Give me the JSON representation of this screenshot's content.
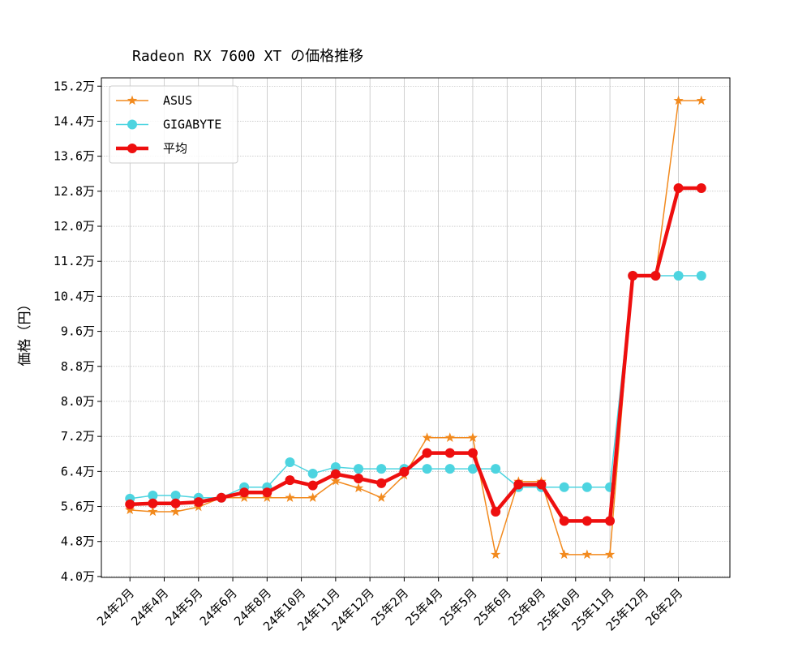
{
  "chart_data": {
    "type": "line",
    "title": "Radeon RX 7600 XT の価格推移",
    "y_label": "価格（円）",
    "x": [
      0,
      1,
      2,
      3,
      4,
      5,
      6,
      7,
      8,
      9,
      10,
      11,
      12,
      13,
      14,
      15,
      16,
      17,
      18,
      19,
      20,
      21,
      22,
      23,
      24,
      25
    ],
    "xlim": [
      -1.25,
      26.25
    ],
    "xticks": [
      {
        "value": 0,
        "label": "24年2月"
      },
      {
        "value": 1.5,
        "label": "24年4月"
      },
      {
        "value": 3,
        "label": "24年5月"
      },
      {
        "value": 4.5,
        "label": "24年6月"
      },
      {
        "value": 6,
        "label": "24年8月"
      },
      {
        "value": 7.5,
        "label": "24年10月"
      },
      {
        "value": 9,
        "label": "24年11月"
      },
      {
        "value": 10.5,
        "label": "24年12月"
      },
      {
        "value": 12,
        "label": "25年2月"
      },
      {
        "value": 13.5,
        "label": "25年4月"
      },
      {
        "value": 15,
        "label": "25年5月"
      },
      {
        "value": 16.5,
        "label": "25年6月"
      },
      {
        "value": 18,
        "label": "25年8月"
      },
      {
        "value": 19.5,
        "label": "25年10月"
      },
      {
        "value": 21,
        "label": "25年11月"
      },
      {
        "value": 22.5,
        "label": "25年12月"
      },
      {
        "value": 24,
        "label": "26年2月"
      }
    ],
    "ylim": [
      3.98,
      15.39
    ],
    "yticks": [
      {
        "value": 4.0,
        "label": "4.0万"
      },
      {
        "value": 4.8,
        "label": "4.8万"
      },
      {
        "value": 5.6,
        "label": "5.6万"
      },
      {
        "value": 6.4,
        "label": "6.4万"
      },
      {
        "value": 7.2,
        "label": "7.2万"
      },
      {
        "value": 8.0,
        "label": "8.0万"
      },
      {
        "value": 8.8,
        "label": "8.8万"
      },
      {
        "value": 9.6,
        "label": "9.6万"
      },
      {
        "value": 10.4,
        "label": "10.4万"
      },
      {
        "value": 11.2,
        "label": "11.2万"
      },
      {
        "value": 12.0,
        "label": "12.0万"
      },
      {
        "value": 12.8,
        "label": "12.8万"
      },
      {
        "value": 13.6,
        "label": "13.6万"
      },
      {
        "value": 14.4,
        "label": "14.4万"
      },
      {
        "value": 15.2,
        "label": "15.2万"
      }
    ],
    "grid": true,
    "legend": "upper left",
    "series": [
      {
        "name": "ASUS",
        "color": "#f28a1e",
        "marker": "star",
        "line_width": 1,
        "values": [
          5.52,
          5.48,
          5.48,
          5.59,
          5.8,
          5.8,
          5.8,
          5.8,
          5.8,
          6.18,
          6.02,
          5.8,
          6.31,
          7.17,
          7.17,
          7.17,
          4.5,
          6.17,
          6.17,
          4.5,
          4.5,
          4.5,
          10.87,
          10.87,
          14.87,
          14.87
        ]
      },
      {
        "name": "GIGABYTE",
        "color": "#4dd4e0",
        "marker": "circle",
        "line_width": 1,
        "values": [
          5.78,
          5.85,
          5.85,
          5.8,
          5.8,
          6.04,
          6.04,
          6.61,
          6.35,
          6.5,
          6.46,
          6.46,
          6.46,
          6.46,
          6.46,
          6.46,
          6.46,
          6.04,
          6.04,
          6.04,
          6.04,
          6.04,
          10.87,
          10.87,
          10.87,
          10.87
        ]
      },
      {
        "name": "平均",
        "color": "#ee0f0f",
        "marker": "circle",
        "line_width": 3,
        "values": [
          5.65,
          5.67,
          5.67,
          5.7,
          5.8,
          5.92,
          5.92,
          6.2,
          6.08,
          6.34,
          6.24,
          6.13,
          6.39,
          6.82,
          6.82,
          6.82,
          5.48,
          6.1,
          6.1,
          5.27,
          5.27,
          5.27,
          10.87,
          10.87,
          12.87,
          12.87
        ]
      }
    ]
  }
}
